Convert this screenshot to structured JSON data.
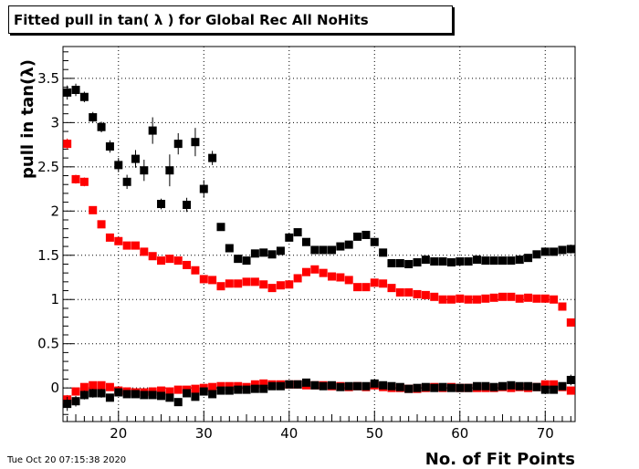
{
  "chart_data": {
    "type": "scatter",
    "title": "Fitted pull in tan( λ ) for Global Rec All NoHits",
    "xlabel": "No. of Fit Points",
    "ylabel": "pull in tan(λ)",
    "xlim": [
      13.5,
      73.5
    ],
    "ylim": [
      -0.38,
      3.86
    ],
    "xticks": [
      20,
      30,
      40,
      50,
      60,
      70
    ],
    "yticks": [
      0,
      0.5,
      1,
      1.5,
      2,
      2.5,
      3,
      3.5
    ],
    "grid": true,
    "colors": {
      "black": "#000000",
      "red": "#ff0000"
    },
    "series": [
      {
        "color": "#000000",
        "x": [
          14,
          15,
          16,
          17,
          18,
          19,
          20,
          21,
          22,
          23,
          24,
          25,
          26,
          27,
          28,
          29,
          30,
          31,
          32,
          33,
          34,
          35,
          36,
          37,
          38,
          39,
          40,
          41,
          42,
          43,
          44,
          45,
          46,
          47,
          48,
          49,
          50,
          51,
          52,
          53,
          54,
          55,
          56,
          57,
          58,
          59,
          60,
          61,
          62,
          63,
          64,
          65,
          66,
          67,
          68,
          69,
          70,
          71,
          72,
          73
        ],
        "y": [
          3.34,
          3.37,
          3.29,
          3.06,
          2.95,
          2.73,
          2.52,
          2.33,
          2.59,
          2.46,
          2.91,
          2.08,
          2.46,
          2.76,
          2.07,
          2.78,
          2.25,
          2.6,
          1.82,
          1.58,
          1.46,
          1.44,
          1.52,
          1.53,
          1.51,
          1.55,
          1.7,
          1.76,
          1.65,
          1.56,
          1.56,
          1.56,
          1.6,
          1.62,
          1.71,
          1.73,
          1.65,
          1.53,
          1.41,
          1.41,
          1.4,
          1.42,
          1.45,
          1.43,
          1.43,
          1.42,
          1.43,
          1.43,
          1.45,
          1.44,
          1.44,
          1.44,
          1.44,
          1.45,
          1.47,
          1.51,
          1.54,
          1.54,
          1.56,
          1.57
        ],
        "err": [
          0.08,
          0.07,
          0.06,
          0.06,
          0.06,
          0.07,
          0.08,
          0.08,
          0.1,
          0.12,
          0.15,
          0.06,
          0.18,
          0.12,
          0.08,
          0.16,
          0.1,
          0.08,
          0.04,
          0.03,
          0.03,
          0.03,
          0.03,
          0.03,
          0.03,
          0.03,
          0.03,
          0.03,
          0.03,
          0.03,
          0.03,
          0.03,
          0.03,
          0.03,
          0.03,
          0.03,
          0.03,
          0.03,
          0.02,
          0.02,
          0.02,
          0.02,
          0.02,
          0.02,
          0.02,
          0.02,
          0.02,
          0.02,
          0.02,
          0.02,
          0.02,
          0.02,
          0.02,
          0.02,
          0.02,
          0.02,
          0.02,
          0.03,
          0.03,
          0.05
        ]
      },
      {
        "color": "#ff0000",
        "x": [
          14,
          15,
          16,
          17,
          18,
          19,
          20,
          21,
          22,
          23,
          24,
          25,
          26,
          27,
          28,
          29,
          30,
          31,
          32,
          33,
          34,
          35,
          36,
          37,
          38,
          39,
          40,
          41,
          42,
          43,
          44,
          45,
          46,
          47,
          48,
          49,
          50,
          51,
          52,
          53,
          54,
          55,
          56,
          57,
          58,
          59,
          60,
          61,
          62,
          63,
          64,
          65,
          66,
          67,
          68,
          69,
          70,
          71,
          72,
          73
        ],
        "y": [
          2.76,
          2.36,
          2.33,
          2.01,
          1.85,
          1.7,
          1.66,
          1.61,
          1.61,
          1.54,
          1.49,
          1.44,
          1.46,
          1.44,
          1.39,
          1.33,
          1.23,
          1.22,
          1.15,
          1.18,
          1.18,
          1.2,
          1.2,
          1.17,
          1.13,
          1.16,
          1.17,
          1.24,
          1.31,
          1.34,
          1.3,
          1.26,
          1.25,
          1.22,
          1.14,
          1.14,
          1.19,
          1.18,
          1.13,
          1.08,
          1.08,
          1.06,
          1.05,
          1.03,
          1.0,
          1.0,
          1.01,
          1.0,
          1.0,
          1.01,
          1.02,
          1.03,
          1.03,
          1.01,
          1.02,
          1.01,
          1.01,
          1.0,
          0.92,
          0.74
        ],
        "err": [
          0.06,
          0.05,
          0.05,
          0.04,
          0.04,
          0.03,
          0.03,
          0.03,
          0.03,
          0.03,
          0.03,
          0.03,
          0.03,
          0.03,
          0.03,
          0.03,
          0.03,
          0.03,
          0.02,
          0.02,
          0.02,
          0.02,
          0.02,
          0.02,
          0.02,
          0.02,
          0.02,
          0.02,
          0.02,
          0.02,
          0.02,
          0.02,
          0.02,
          0.02,
          0.02,
          0.02,
          0.02,
          0.02,
          0.02,
          0.02,
          0.02,
          0.02,
          0.02,
          0.02,
          0.02,
          0.02,
          0.02,
          0.02,
          0.02,
          0.02,
          0.02,
          0.02,
          0.02,
          0.02,
          0.02,
          0.02,
          0.02,
          0.02,
          0.02,
          0.03
        ]
      },
      {
        "color": "#ff0000",
        "x": [
          14,
          15,
          16,
          17,
          18,
          19,
          20,
          21,
          22,
          23,
          24,
          25,
          26,
          27,
          28,
          29,
          30,
          31,
          32,
          33,
          34,
          35,
          36,
          37,
          38,
          39,
          40,
          41,
          42,
          43,
          44,
          45,
          46,
          47,
          48,
          49,
          50,
          51,
          52,
          53,
          54,
          55,
          56,
          57,
          58,
          59,
          60,
          61,
          62,
          63,
          64,
          65,
          66,
          67,
          68,
          69,
          70,
          71,
          72,
          73
        ],
        "y": [
          -0.13,
          -0.04,
          0.01,
          0.03,
          0.03,
          0.01,
          -0.03,
          -0.04,
          -0.05,
          -0.05,
          -0.04,
          -0.03,
          -0.04,
          -0.02,
          -0.02,
          -0.01,
          0.0,
          0.01,
          0.02,
          0.02,
          0.02,
          0.01,
          0.04,
          0.05,
          0.04,
          0.04,
          0.04,
          0.04,
          0.03,
          0.03,
          0.03,
          0.02,
          0.02,
          0.01,
          0.02,
          0.01,
          0.03,
          0.01,
          0.0,
          0.0,
          -0.01,
          -0.01,
          0.0,
          0.01,
          0.0,
          0.01,
          0.0,
          0.0,
          0.0,
          0.0,
          0.0,
          0.01,
          0.0,
          0.01,
          0.0,
          0.01,
          0.04,
          0.04,
          0.01,
          -0.03
        ],
        "err": [
          0.05,
          0.04,
          0.03,
          0.03,
          0.03,
          0.02,
          0.02,
          0.02,
          0.02,
          0.02,
          0.02,
          0.02,
          0.02,
          0.02,
          0.02,
          0.02,
          0.02,
          0.02,
          0.02,
          0.02,
          0.02,
          0.02,
          0.02,
          0.02,
          0.02,
          0.02,
          0.02,
          0.02,
          0.02,
          0.02,
          0.02,
          0.02,
          0.02,
          0.02,
          0.02,
          0.02,
          0.02,
          0.02,
          0.02,
          0.02,
          0.02,
          0.02,
          0.02,
          0.02,
          0.02,
          0.02,
          0.02,
          0.02,
          0.02,
          0.02,
          0.02,
          0.02,
          0.02,
          0.02,
          0.02,
          0.02,
          0.02,
          0.02,
          0.02,
          0.03
        ]
      },
      {
        "color": "#000000",
        "x": [
          14,
          15,
          16,
          17,
          18,
          19,
          20,
          21,
          22,
          23,
          24,
          25,
          26,
          27,
          28,
          29,
          30,
          31,
          32,
          33,
          34,
          35,
          36,
          37,
          38,
          39,
          40,
          41,
          42,
          43,
          44,
          45,
          46,
          47,
          48,
          49,
          50,
          51,
          52,
          53,
          54,
          55,
          56,
          57,
          58,
          59,
          60,
          61,
          62,
          63,
          64,
          65,
          66,
          67,
          68,
          69,
          70,
          71,
          72,
          73
        ],
        "y": [
          -0.18,
          -0.15,
          -0.08,
          -0.06,
          -0.06,
          -0.11,
          -0.05,
          -0.07,
          -0.07,
          -0.08,
          -0.08,
          -0.09,
          -0.11,
          -0.16,
          -0.06,
          -0.1,
          -0.04,
          -0.07,
          -0.03,
          -0.03,
          -0.02,
          -0.02,
          -0.01,
          -0.01,
          0.02,
          0.02,
          0.04,
          0.04,
          0.06,
          0.03,
          0.02,
          0.03,
          0.01,
          0.02,
          0.02,
          0.02,
          0.05,
          0.03,
          0.02,
          0.01,
          -0.01,
          0.0,
          0.01,
          0.0,
          0.01,
          0.0,
          0.0,
          0.0,
          0.02,
          0.02,
          0.01,
          0.02,
          0.03,
          0.02,
          0.02,
          0.01,
          -0.02,
          -0.02,
          0.02,
          0.09
        ],
        "err": [
          0.08,
          0.06,
          0.05,
          0.05,
          0.05,
          0.04,
          0.04,
          0.04,
          0.04,
          0.04,
          0.04,
          0.04,
          0.04,
          0.04,
          0.04,
          0.04,
          0.04,
          0.03,
          0.03,
          0.03,
          0.03,
          0.03,
          0.02,
          0.02,
          0.02,
          0.02,
          0.02,
          0.02,
          0.02,
          0.02,
          0.02,
          0.02,
          0.02,
          0.02,
          0.02,
          0.02,
          0.02,
          0.02,
          0.02,
          0.02,
          0.02,
          0.02,
          0.02,
          0.02,
          0.02,
          0.02,
          0.02,
          0.02,
          0.02,
          0.02,
          0.02,
          0.02,
          0.02,
          0.02,
          0.02,
          0.02,
          0.03,
          0.03,
          0.04,
          0.06
        ]
      }
    ]
  },
  "timestamp": "Tue Oct 20 07:15:38 2020"
}
